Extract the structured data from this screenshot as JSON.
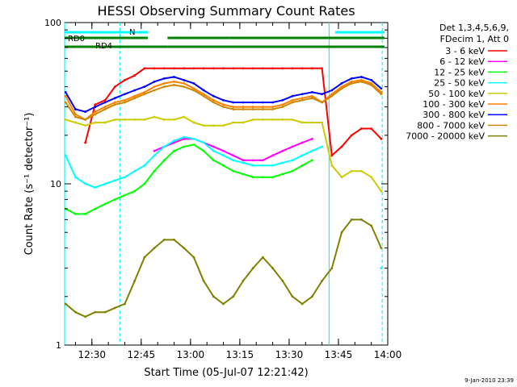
{
  "chart_data": {
    "type": "line",
    "title": "HESSI Observing Summary Count Rates",
    "xlabel": "Start Time (05-Jul-07 12:21:42)",
    "ylabel": "Count Rate (s⁻¹ detector⁻¹)",
    "y_scale": "log",
    "ylim": [
      1,
      100
    ],
    "xlim": [
      "12:21:42",
      "14:00:00"
    ],
    "x_ticks": [
      "12:30",
      "12:45",
      "13:00",
      "13:15",
      "13:30",
      "13:45",
      "14:00"
    ],
    "y_ticks": [
      "1",
      "10",
      "100"
    ],
    "grid": false,
    "legend_position": "right",
    "legend_header": [
      "Det 1,3,4,5,6,9,",
      "FDecim 1, Att 0"
    ],
    "footer": "9-Jan-2010 23:39",
    "flags": [
      {
        "label": "N",
        "color": "#00ffff",
        "segments": [
          [
            "12:21:42",
            "12:47:00"
          ],
          [
            "13:44:00",
            "13:59:00"
          ]
        ]
      },
      {
        "label": "RD0",
        "color": "#008000",
        "segments": [
          [
            "12:21:42",
            "12:47:00"
          ],
          [
            "12:53:00",
            "13:12:00"
          ],
          [
            "13:12:00",
            "13:42:00"
          ],
          [
            "13:42:00",
            "13:59:00"
          ]
        ]
      },
      {
        "label": "RD4",
        "color": "#008000",
        "segments": [
          [
            "12:21:42",
            "12:53:00"
          ],
          [
            "12:53:00",
            "13:59:00"
          ]
        ]
      }
    ],
    "vlines": [
      {
        "time": "12:21:42",
        "style": "solid",
        "color": "#00ffff"
      },
      {
        "time": "12:38:30",
        "style": "dashed",
        "color": "#00ffff"
      },
      {
        "time": "13:42:10",
        "style": "solid",
        "color": "#00ffff"
      },
      {
        "time": "13:58:20",
        "style": "dashed",
        "color": "#00ffff"
      }
    ],
    "x": [
      "12:22",
      "12:25",
      "12:28",
      "12:31",
      "12:34",
      "12:37",
      "12:40",
      "12:43",
      "12:46",
      "12:49",
      "12:52",
      "12:55",
      "12:58",
      "13:01",
      "13:04",
      "13:07",
      "13:10",
      "13:13",
      "13:16",
      "13:19",
      "13:22",
      "13:25",
      "13:28",
      "13:31",
      "13:34",
      "13:37",
      "13:40",
      "13:43",
      "13:46",
      "13:49",
      "13:52",
      "13:55",
      "13:58"
    ],
    "series": [
      {
        "name": "3 - 6 keV",
        "color": "#ff0000",
        "values": [
          null,
          null,
          18,
          31,
          33,
          40,
          44,
          47,
          52,
          52,
          52,
          52,
          52,
          52,
          52,
          52,
          52,
          52,
          52,
          52,
          52,
          52,
          52,
          52,
          52,
          52,
          52,
          15,
          17,
          20,
          22,
          22,
          19
        ]
      },
      {
        "name": "6 - 12 keV",
        "color": "#ff00ff",
        "values": [
          null,
          null,
          null,
          null,
          null,
          null,
          null,
          null,
          null,
          16,
          17,
          18,
          19,
          19,
          18,
          17,
          16,
          15,
          14,
          14,
          14,
          15,
          16,
          17,
          18,
          19,
          null,
          null,
          null,
          null,
          null,
          null,
          null
        ]
      },
      {
        "name": "12 - 25 keV",
        "color": "#00ff00",
        "values": [
          7,
          6.5,
          6.5,
          7,
          7.5,
          8,
          8.5,
          9,
          10,
          12,
          14,
          16,
          17,
          17.5,
          16,
          14,
          13,
          12,
          11.5,
          11,
          11,
          11,
          11.5,
          12,
          13,
          14,
          null,
          null,
          null,
          null,
          null,
          null,
          null
        ]
      },
      {
        "name": "25 - 50 keV",
        "color": "#00ffff",
        "values": [
          15,
          11,
          10,
          9.5,
          10,
          10.5,
          11,
          12,
          13,
          15,
          17,
          18.5,
          19.5,
          19,
          18,
          16,
          15,
          14,
          13.5,
          13,
          13,
          13,
          13.5,
          14,
          15,
          16,
          17,
          null,
          null,
          null,
          null,
          null,
          3
        ]
      },
      {
        "name": "50 - 100 keV",
        "color": "#cccc00",
        "values": [
          25,
          24,
          23,
          24,
          24,
          25,
          25,
          25,
          25,
          26,
          25,
          25,
          26,
          24,
          23,
          23,
          23,
          24,
          24,
          25,
          25,
          25,
          25,
          25,
          24,
          24,
          24,
          13,
          11,
          12,
          12,
          11,
          9
        ]
      },
      {
        "name": "100 - 300 keV",
        "color": "#ff8000",
        "values": [
          35,
          27,
          25,
          28,
          30,
          32,
          33,
          35,
          37,
          40,
          42,
          43,
          42,
          39,
          36,
          33,
          31,
          30,
          30,
          30,
          30,
          30,
          31,
          33,
          34,
          35,
          32,
          36,
          40,
          43,
          44,
          42,
          37
        ]
      },
      {
        "name": "300 - 800 keV",
        "color": "#0000ff",
        "values": [
          37,
          29,
          28,
          30,
          32,
          34,
          36,
          38,
          40,
          43,
          45,
          46,
          44,
          42,
          38,
          35,
          33,
          32,
          32,
          32,
          32,
          32,
          33,
          35,
          36,
          37,
          36,
          38,
          42,
          45,
          46,
          44,
          39
        ]
      },
      {
        "name": "800 - 7000 keV",
        "color": "#cc8800",
        "values": [
          32,
          26,
          25,
          27,
          29,
          31,
          32,
          34,
          36,
          38,
          40,
          41,
          40,
          38,
          35,
          32,
          30,
          29,
          29,
          29,
          29,
          29,
          30,
          32,
          33,
          34,
          32,
          35,
          39,
          42,
          43,
          41,
          36
        ]
      },
      {
        "name": "7000 - 20000 keV",
        "color": "#808000",
        "values": [
          1.8,
          1.6,
          1.5,
          1.6,
          1.6,
          1.7,
          1.8,
          2.5,
          3.5,
          4,
          4.5,
          4.5,
          4,
          3.5,
          2.5,
          2,
          1.8,
          2,
          2.5,
          3,
          3.5,
          3,
          2.5,
          2,
          1.8,
          2,
          2.5,
          3,
          5,
          6,
          6,
          5.5,
          4
        ]
      }
    ],
    "flag_label_color": "#008000"
  }
}
